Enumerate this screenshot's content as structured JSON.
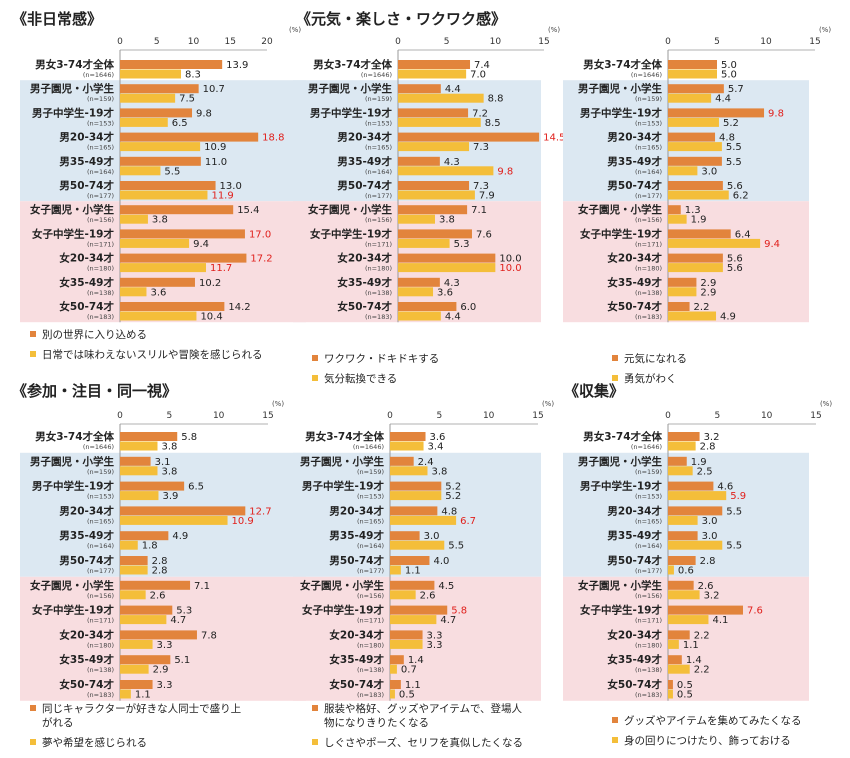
{
  "section_titles": [
    "《非日常感》",
    "《元気・楽しさ・ワクワク感》",
    "《参加・注目・同一視》",
    "《収集》"
  ],
  "pct_label": "(%)",
  "rows": [
    {
      "label": "男女3-74才全体",
      "n": "(n=1646)",
      "group": "all"
    },
    {
      "label": "男子園児・小学生",
      "n": "(n=159)",
      "group": "m"
    },
    {
      "label": "男子中学生-19才",
      "n": "(n=153)",
      "group": "m"
    },
    {
      "label": "男20-34才",
      "n": "(n=165)",
      "group": "m"
    },
    {
      "label": "男35-49才",
      "n": "(n=164)",
      "group": "m"
    },
    {
      "label": "男50-74才",
      "n": "(n=177)",
      "group": "m"
    },
    {
      "label": "女子園児・小学生",
      "n": "(n=156)",
      "group": "f"
    },
    {
      "label": "女子中学生-19才",
      "n": "(n=171)",
      "group": "f"
    },
    {
      "label": "女20-34才",
      "n": "(n=180)",
      "group": "f"
    },
    {
      "label": "女35-49才",
      "n": "(n=138)",
      "group": "f"
    },
    {
      "label": "女50-74才",
      "n": "(n=183)",
      "group": "f"
    }
  ],
  "colors": {
    "series1": "#E2843C",
    "series2": "#F4BE3A",
    "male_bg": "#DCE8F2",
    "female_bg": "#F8DDE0",
    "highlight": "#E0201C",
    "value_text": "#222222",
    "axis": "#999999"
  },
  "chart_data": [
    {
      "type": "bar",
      "orientation": "horizontal",
      "title": "《非日常感》",
      "xlim": [
        0,
        20
      ],
      "ticks": [
        0,
        5,
        10,
        15,
        20
      ],
      "unit": "(%)",
      "series": [
        {
          "name": "別の世界に入り込める",
          "values": [
            13.9,
            10.7,
            9.8,
            18.8,
            11.0,
            13.0,
            15.4,
            17.0,
            17.2,
            10.2,
            14.2
          ],
          "highlight": [
            false,
            false,
            false,
            true,
            false,
            false,
            false,
            true,
            true,
            false,
            false
          ]
        },
        {
          "name": "日常では味わえないスリルや冒険を感じられる",
          "values": [
            8.3,
            7.5,
            6.5,
            10.9,
            5.5,
            11.9,
            3.8,
            9.4,
            11.7,
            3.6,
            10.4
          ],
          "highlight": [
            false,
            false,
            false,
            false,
            false,
            true,
            false,
            false,
            true,
            false,
            false
          ]
        }
      ]
    },
    {
      "type": "bar",
      "orientation": "horizontal",
      "title": "《元気・楽しさ・ワクワク感》",
      "xlim": [
        0,
        15
      ],
      "ticks": [
        0,
        5,
        10,
        15
      ],
      "unit": "(%)",
      "series": [
        {
          "name": "ワクワク・ドキドキする",
          "values": [
            7.4,
            4.4,
            7.2,
            14.5,
            4.3,
            7.3,
            7.1,
            7.6,
            10.0,
            4.3,
            6.0
          ],
          "highlight": [
            false,
            false,
            false,
            true,
            false,
            false,
            false,
            false,
            false,
            false,
            false
          ]
        },
        {
          "name": "気分転換できる",
          "values": [
            7.0,
            8.8,
            8.5,
            7.3,
            9.8,
            7.9,
            3.8,
            5.3,
            10.0,
            3.6,
            4.4
          ],
          "highlight": [
            false,
            false,
            false,
            false,
            true,
            false,
            false,
            false,
            true,
            false,
            false
          ]
        }
      ]
    },
    {
      "type": "bar",
      "orientation": "horizontal",
      "title": "",
      "xlim": [
        0,
        15
      ],
      "ticks": [
        0,
        5,
        10,
        15
      ],
      "unit": "(%)",
      "series": [
        {
          "name": "元気になれる",
          "values": [
            5.0,
            5.7,
            9.8,
            4.8,
            5.5,
            5.6,
            1.3,
            6.4,
            5.6,
            2.9,
            2.2
          ],
          "highlight": [
            false,
            false,
            true,
            false,
            false,
            false,
            false,
            false,
            false,
            false,
            false
          ]
        },
        {
          "name": "勇気がわく",
          "values": [
            5.0,
            4.4,
            5.2,
            5.5,
            3.0,
            6.2,
            1.9,
            9.4,
            5.6,
            2.9,
            4.9
          ],
          "highlight": [
            false,
            false,
            false,
            false,
            false,
            false,
            false,
            true,
            false,
            false,
            false
          ]
        }
      ]
    },
    {
      "type": "bar",
      "orientation": "horizontal",
      "title": "《参加・注目・同一視》",
      "xlim": [
        0,
        15
      ],
      "ticks": [
        0,
        5,
        10,
        15
      ],
      "unit": "(%)",
      "series": [
        {
          "name": "同じキャラクターが好きな人同士で盛り上がれる",
          "values": [
            5.8,
            3.1,
            6.5,
            12.7,
            4.9,
            2.8,
            7.1,
            5.3,
            7.8,
            5.1,
            3.3
          ],
          "highlight": [
            false,
            false,
            false,
            true,
            false,
            false,
            false,
            false,
            false,
            false,
            false
          ]
        },
        {
          "name": "夢や希望を感じられる",
          "values": [
            3.8,
            3.8,
            3.9,
            10.9,
            1.8,
            2.8,
            2.6,
            4.7,
            3.3,
            2.9,
            1.1
          ],
          "highlight": [
            false,
            false,
            false,
            true,
            false,
            false,
            false,
            false,
            false,
            false,
            false
          ]
        }
      ]
    },
    {
      "type": "bar",
      "orientation": "horizontal",
      "title": "",
      "xlim": [
        0,
        15
      ],
      "ticks": [
        0,
        5,
        10,
        15
      ],
      "unit": "(%)",
      "series": [
        {
          "name": "服装や格好、グッズやアイテムで、登場人物になりきりたくなる",
          "values": [
            3.6,
            2.4,
            5.2,
            4.8,
            3.0,
            4.0,
            4.5,
            5.8,
            3.3,
            1.4,
            1.1
          ],
          "highlight": [
            false,
            false,
            false,
            false,
            false,
            false,
            false,
            true,
            false,
            false,
            false
          ]
        },
        {
          "name": "しぐさやポーズ、セリフを真似したくなる",
          "values": [
            3.4,
            3.8,
            5.2,
            6.7,
            5.5,
            1.1,
            2.6,
            4.7,
            3.3,
            0.7,
            0.5
          ],
          "highlight": [
            false,
            false,
            false,
            true,
            false,
            false,
            false,
            false,
            false,
            false,
            false
          ]
        }
      ]
    },
    {
      "type": "bar",
      "orientation": "horizontal",
      "title": "《収集》",
      "xlim": [
        0,
        15
      ],
      "ticks": [
        0,
        5,
        10,
        15
      ],
      "unit": "(%)",
      "series": [
        {
          "name": "グッズやアイテムを集めてみたくなる",
          "values": [
            3.2,
            1.9,
            4.6,
            5.5,
            3.0,
            2.8,
            2.6,
            7.6,
            2.2,
            1.4,
            0.5
          ],
          "highlight": [
            false,
            false,
            false,
            false,
            false,
            false,
            false,
            true,
            false,
            false,
            false
          ]
        },
        {
          "name": "身の回りにつけたり、飾っておける",
          "values": [
            2.8,
            2.5,
            5.9,
            3.0,
            5.5,
            0.6,
            3.2,
            4.1,
            1.1,
            2.2,
            0.5
          ],
          "highlight": [
            false,
            false,
            true,
            false,
            false,
            false,
            false,
            false,
            false,
            false,
            false
          ]
        }
      ]
    }
  ],
  "legends": [
    {
      "panels": [
        0
      ],
      "entries": [
        {
          "series": 0,
          "text": [
            "別の世界に入り込める"
          ]
        },
        {
          "series": 1,
          "text": [
            "日常では味わえないスリルや冒険を感じられる"
          ]
        }
      ]
    },
    {
      "panels": [
        1
      ],
      "entries": [
        {
          "series": 0,
          "text": [
            "ワクワク・ドキドキする"
          ]
        },
        {
          "series": 1,
          "text": [
            "気分転換できる"
          ]
        }
      ]
    },
    {
      "panels": [
        2
      ],
      "entries": [
        {
          "series": 0,
          "text": [
            "元気になれる"
          ]
        },
        {
          "series": 1,
          "text": [
            "勇気がわく"
          ]
        }
      ]
    },
    {
      "panels": [
        3
      ],
      "entries": [
        {
          "series": 0,
          "text": [
            "同じキャラクターが好きな人同士で盛り上",
            "がれる"
          ]
        },
        {
          "series": 1,
          "text": [
            "夢や希望を感じられる"
          ]
        }
      ]
    },
    {
      "panels": [
        4
      ],
      "entries": [
        {
          "series": 0,
          "text": [
            "服装や格好、グッズやアイテムで、登場人",
            "物になりきりたくなる"
          ]
        },
        {
          "series": 1,
          "text": [
            "しぐさやポーズ、セリフを真似したくなる"
          ]
        }
      ]
    },
    {
      "panels": [
        5
      ],
      "entries": [
        {
          "series": 0,
          "text": [
            "グッズやアイテムを集めてみたくなる"
          ]
        },
        {
          "series": 1,
          "text": [
            "身の回りにつけたり、飾っておける"
          ]
        }
      ]
    }
  ]
}
